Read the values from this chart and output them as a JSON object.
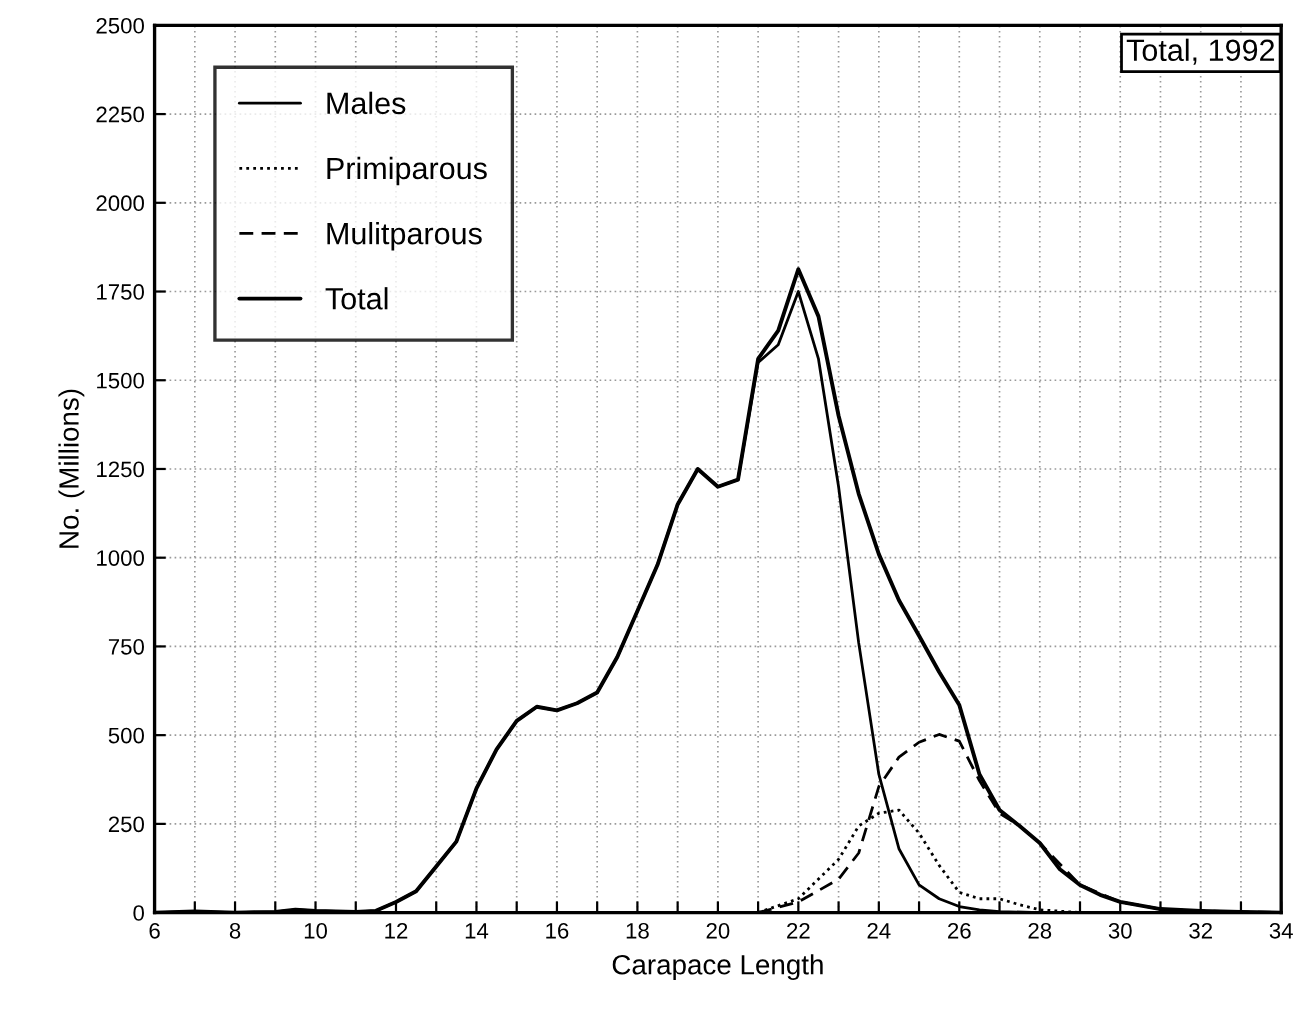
{
  "chart_data": {
    "type": "line",
    "xlabel": "Carapace Length",
    "ylabel": "No. (Millions)",
    "annotations": [
      "Total, 1992"
    ],
    "xlim": [
      6,
      34
    ],
    "ylim": [
      0,
      2500
    ],
    "xticks": [
      6,
      {
        "value": 7,
        "label": null
      },
      8,
      {
        "value": 9,
        "label": null
      },
      10,
      {
        "value": 11,
        "label": null
      },
      12,
      {
        "value": 13,
        "label": null
      },
      14,
      {
        "value": 15,
        "label": null
      },
      16,
      {
        "value": 17,
        "label": null
      },
      18,
      {
        "value": 19,
        "label": null
      },
      20,
      {
        "value": 21,
        "label": null
      },
      22,
      {
        "value": 23,
        "label": null
      },
      24,
      {
        "value": 25,
        "label": null
      },
      26,
      {
        "value": 27,
        "label": null
      },
      28,
      {
        "value": 29,
        "label": null
      },
      30,
      {
        "value": 31,
        "label": null
      },
      32,
      {
        "value": 33,
        "label": null
      },
      34
    ],
    "yticks": [
      0,
      250,
      500,
      750,
      1000,
      1250,
      1500,
      1750,
      2000,
      2250,
      2500
    ],
    "grid": true,
    "legend": "top left",
    "marker": "none",
    "series": [
      {
        "name": "Males",
        "color": "#000000",
        "line_style": "solid",
        "x": [
          6,
          7,
          8,
          9,
          9.5,
          10,
          11,
          11.5,
          12,
          12.5,
          13,
          13.5,
          14,
          14.5,
          15,
          15.5,
          16,
          16.5,
          17,
          17.5,
          18,
          18.5,
          19,
          19.5,
          20,
          20.5,
          21,
          21.5,
          22,
          22.5,
          23,
          23.5,
          24,
          24.5,
          25,
          25.5,
          26,
          26.5,
          27,
          28,
          34
        ],
        "values": [
          0,
          3,
          0,
          2,
          8,
          5,
          2,
          5,
          30,
          60,
          130,
          200,
          350,
          460,
          540,
          580,
          570,
          590,
          620,
          720,
          850,
          980,
          1150,
          1250,
          1200,
          1220,
          1550,
          1600,
          1750,
          1560,
          1200,
          760,
          390,
          180,
          78,
          39,
          17,
          8,
          3,
          0,
          0
        ]
      },
      {
        "name": "Primiparous",
        "color": "#000000",
        "line_style": "dotted",
        "x": [
          21,
          22,
          23,
          23.5,
          24,
          24.5,
          25,
          25.5,
          26,
          26.5,
          27,
          27.5,
          28,
          29
        ],
        "values": [
          0,
          39,
          150,
          244,
          280,
          289,
          224,
          133,
          57,
          39,
          39,
          22,
          8,
          0
        ]
      },
      {
        "name": "Mulitparous",
        "color": "#000000",
        "line_style": "dashed",
        "x": [
          21,
          22,
          23,
          23.5,
          24,
          24.5,
          25,
          25.5,
          26,
          26.5,
          27,
          27.5,
          28,
          29,
          30,
          31,
          32,
          33,
          34
        ],
        "values": [
          0,
          30,
          94,
          168,
          355,
          438,
          480,
          502,
          483,
          372,
          280,
          244,
          196,
          78,
          30,
          10,
          5,
          2,
          0
        ]
      },
      {
        "name": "Total",
        "color": "#000000",
        "line_style": "solid",
        "x": [
          6,
          7,
          8,
          9,
          9.5,
          10,
          11,
          11.5,
          12,
          12.5,
          13,
          13.5,
          14,
          14.5,
          15,
          15.5,
          16,
          16.5,
          17,
          17.5,
          18,
          18.5,
          19,
          19.5,
          20,
          20.5,
          21,
          21.5,
          22,
          22.5,
          23,
          23.5,
          24,
          24.5,
          25,
          25.5,
          26,
          26.5,
          27,
          27.5,
          28,
          28.5,
          29,
          29.5,
          30,
          31,
          32,
          33,
          34
        ],
        "values": [
          0,
          3,
          0,
          2,
          8,
          5,
          2,
          5,
          30,
          60,
          130,
          200,
          350,
          460,
          540,
          580,
          570,
          590,
          620,
          720,
          850,
          980,
          1150,
          1250,
          1200,
          1220,
          1560,
          1640,
          1813,
          1680,
          1400,
          1180,
          1010,
          880,
          780,
          678,
          585,
          390,
          289,
          244,
          196,
          122,
          78,
          50,
          30,
          10,
          5,
          2,
          0
        ]
      }
    ]
  }
}
